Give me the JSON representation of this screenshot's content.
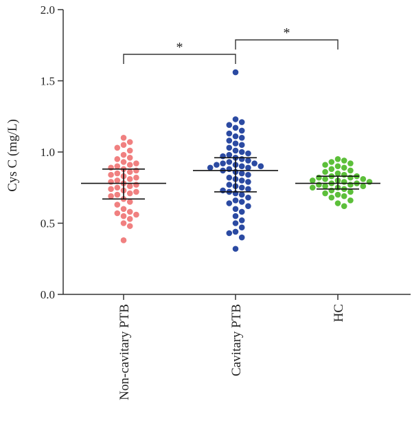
{
  "chart_data": {
    "type": "scatter",
    "title": "",
    "xlabel": "",
    "ylabel": "Cys C (mg/L)",
    "ylim": [
      0,
      2.0
    ],
    "yticks": [
      "0.0",
      "0.5",
      "1.0",
      "1.5",
      "2.0"
    ],
    "ytick_values": [
      0,
      0.5,
      1.0,
      1.5,
      2.0
    ],
    "categories": [
      "Non-cavitary PTB",
      "Cavitary PTB",
      "HC"
    ],
    "grid": false,
    "legend": "none",
    "series": [
      {
        "category": "Non-cavitary PTB",
        "color": "#f08080",
        "median": 0.78,
        "q1": 0.67,
        "q3": 0.88,
        "points": [
          1.1,
          1.07,
          1.05,
          1.03,
          1.01,
          0.98,
          0.96,
          0.95,
          0.93,
          0.92,
          0.91,
          0.9,
          0.89,
          0.88,
          0.87,
          0.86,
          0.85,
          0.84,
          0.83,
          0.82,
          0.81,
          0.8,
          0.79,
          0.78,
          0.77,
          0.76,
          0.75,
          0.74,
          0.73,
          0.72,
          0.71,
          0.7,
          0.69,
          0.67,
          0.65,
          0.63,
          0.6,
          0.58,
          0.57,
          0.56,
          0.55,
          0.53,
          0.5,
          0.48,
          0.38
        ]
      },
      {
        "category": "Cavitary PTB",
        "color": "#2b4aa2",
        "median": 0.87,
        "q1": 0.72,
        "q3": 0.96,
        "points": [
          1.56,
          1.23,
          1.21,
          1.19,
          1.17,
          1.15,
          1.13,
          1.11,
          1.1,
          1.08,
          1.06,
          1.05,
          1.03,
          1.01,
          1.0,
          0.99,
          0.98,
          0.97,
          0.96,
          0.95,
          0.94,
          0.93,
          0.92,
          0.92,
          0.91,
          0.91,
          0.9,
          0.9,
          0.89,
          0.89,
          0.88,
          0.87,
          0.86,
          0.85,
          0.84,
          0.82,
          0.81,
          0.8,
          0.79,
          0.77,
          0.76,
          0.75,
          0.74,
          0.73,
          0.72,
          0.71,
          0.7,
          0.68,
          0.66,
          0.65,
          0.64,
          0.62,
          0.6,
          0.58,
          0.55,
          0.52,
          0.5,
          0.47,
          0.44,
          0.43,
          0.4,
          0.32
        ]
      },
      {
        "category": "HC",
        "color": "#5cbf3a",
        "median": 0.78,
        "q1": 0.74,
        "q3": 0.83,
        "points": [
          0.95,
          0.94,
          0.93,
          0.92,
          0.91,
          0.9,
          0.89,
          0.88,
          0.87,
          0.86,
          0.85,
          0.84,
          0.83,
          0.83,
          0.82,
          0.82,
          0.81,
          0.81,
          0.8,
          0.8,
          0.79,
          0.79,
          0.78,
          0.78,
          0.77,
          0.77,
          0.76,
          0.76,
          0.75,
          0.75,
          0.74,
          0.73,
          0.72,
          0.71,
          0.7,
          0.69,
          0.68,
          0.66,
          0.64,
          0.62
        ]
      }
    ],
    "significance": [
      {
        "from": 0,
        "to": 1,
        "label": "*"
      },
      {
        "from": 1,
        "to": 2,
        "label": "*"
      }
    ]
  }
}
